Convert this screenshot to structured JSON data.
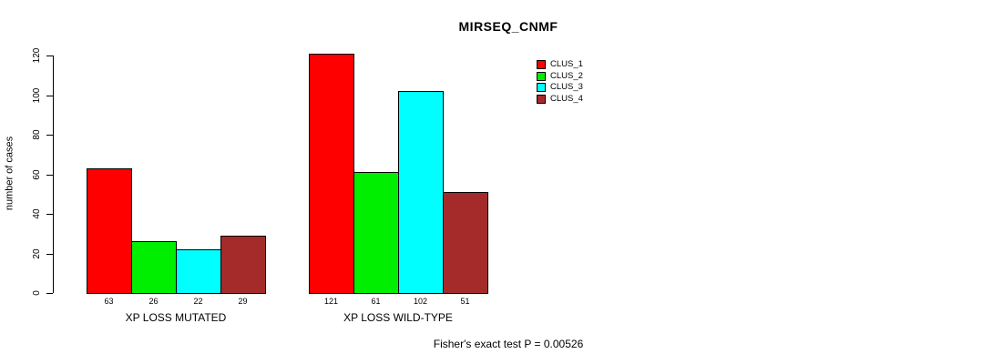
{
  "chart_data": {
    "type": "bar",
    "title": "MIRSEQ_CNMF",
    "ylabel": "number of cases",
    "xlabel": "",
    "ylim": [
      0,
      120
    ],
    "yticks": [
      0,
      20,
      40,
      60,
      80,
      100,
      120
    ],
    "grid": false,
    "legend_position": "top-right",
    "categories": [
      "XP LOSS MUTATED",
      "XP LOSS WILD-TYPE"
    ],
    "series": [
      {
        "name": "CLUS_1",
        "color": "#FF0000",
        "values": [
          63,
          121
        ]
      },
      {
        "name": "CLUS_2",
        "color": "#00EE00",
        "values": [
          26,
          61
        ]
      },
      {
        "name": "CLUS_3",
        "color": "#00FFFF",
        "values": [
          22,
          102
        ]
      },
      {
        "name": "CLUS_4",
        "color": "#A52A2A",
        "values": [
          29,
          51
        ]
      }
    ],
    "bar_value_labels_shown": true,
    "footnote": "Fisher's exact test P = 0.00526"
  }
}
